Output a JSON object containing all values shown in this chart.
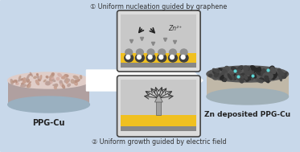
{
  "bg_color": "#c8d8ea",
  "label_ppg_cu": "PPG-Cu",
  "label_zn_deposited": "Zn deposited PPG-Cu",
  "text1": "① Uniform nucleation guided by graphene",
  "text2": "② Uniform growth guided by electric field",
  "zn2plus": "Zn²⁺",
  "box_bg": "#dcdcdc",
  "box_border": "#444444",
  "gold_color": "#f0c020",
  "gray_layer": "#a8a8a8",
  "dark_layer": "#808080",
  "ppg_top_color": "#e0cdc8",
  "ppg_edge_color": "#b0a0a0",
  "ppg_bot_color": "#9ab0c0",
  "zn_top_color": "#585858",
  "zn_edge_color": "#c0b8a8",
  "zn_bot_color": "#a0b0b8"
}
